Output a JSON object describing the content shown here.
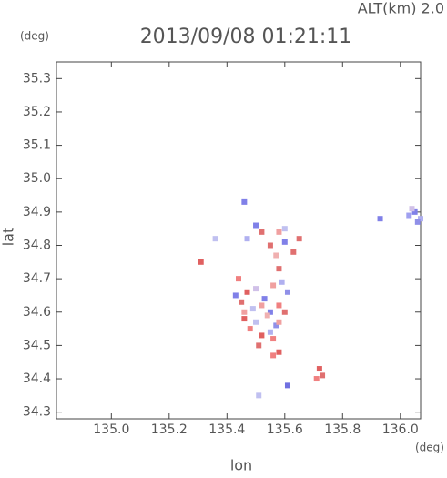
{
  "chart_data": {
    "type": "scatter",
    "title": "2013/09/08 01:21:11",
    "subtitle": "ALT(km) 2.0",
    "x_label": "lon",
    "y_label": "lat",
    "x_unit": "(deg)",
    "y_unit": "(deg)",
    "xlim": [
      134.81,
      136.07
    ],
    "ylim": [
      34.28,
      35.35
    ],
    "xticks": [
      {
        "value": 135.0,
        "label": "135.0"
      },
      135.2,
      135.4,
      135.6,
      135.8,
      {
        "value": 136.0,
        "label": "136.0"
      }
    ],
    "yticks": [
      {
        "value": 34.3,
        "label": "34.3"
      },
      34.4,
      34.5,
      34.6,
      34.7,
      34.8,
      34.9,
      {
        "value": 35.0,
        "label": "35.0"
      },
      35.1,
      35.2,
      35.3
    ],
    "x": [
      135.46,
      135.5,
      135.52,
      135.47,
      135.55,
      135.58,
      135.6,
      135.63,
      135.65,
      135.57,
      135.6,
      135.44,
      135.47,
      135.5,
      135.53,
      135.56,
      135.59,
      135.61,
      135.45,
      135.49,
      135.52,
      135.55,
      135.58,
      135.46,
      135.5,
      135.54,
      135.57,
      135.6,
      135.48,
      135.52,
      135.55,
      135.58,
      135.51,
      135.56,
      135.43,
      135.46,
      135.58,
      135.56,
      135.72,
      135.71,
      135.73,
      135.61,
      135.31,
      136.03,
      136.05,
      136.07,
      136.04,
      136.06,
      135.93,
      135.51,
      135.36,
      135.58
    ],
    "values": [
      34.93,
      34.86,
      34.84,
      34.82,
      34.8,
      34.84,
      34.81,
      34.78,
      34.82,
      34.77,
      34.85,
      34.7,
      34.66,
      34.67,
      34.64,
      34.68,
      34.69,
      34.66,
      34.63,
      34.61,
      34.62,
      34.6,
      34.62,
      34.58,
      34.57,
      34.59,
      34.56,
      34.6,
      34.55,
      34.53,
      34.54,
      34.57,
      34.5,
      34.52,
      34.65,
      34.6,
      34.48,
      34.47,
      34.43,
      34.4,
      34.41,
      34.38,
      34.75,
      34.89,
      34.9,
      34.88,
      34.91,
      34.87,
      34.88,
      34.35,
      34.82,
      34.73
    ],
    "colors": [
      "#8080e8",
      "#8080e8",
      "#e07070",
      "#b0b0f0",
      "#e07070",
      "#f0a0a0",
      "#8080e8",
      "#e07070",
      "#e07070",
      "#f0b0b0",
      "#c0c0f0",
      "#f08080",
      "#e06060",
      "#d0c0e8",
      "#8080e8",
      "#f0a0a0",
      "#b0b0f0",
      "#9090e8",
      "#e07070",
      "#c0c0f0",
      "#f0a0a0",
      "#8080e8",
      "#f08080",
      "#e06060",
      "#c0c0f0",
      "#f0b0b0",
      "#9090e8",
      "#e07070",
      "#f08080",
      "#e06060",
      "#b0b0f0",
      "#f0a0a0",
      "#e07070",
      "#f08080",
      "#8080e8",
      "#f0a0a0",
      "#e06060",
      "#f08080",
      "#e06060",
      "#f08080",
      "#e07070",
      "#7070e0",
      "#e06060",
      "#a0a0f0",
      "#8080e8",
      "#b0b0f0",
      "#d0c0e8",
      "#9090e8",
      "#8080e8",
      "#c0c0f0",
      "#c0c0f0",
      "#e07070"
    ]
  }
}
